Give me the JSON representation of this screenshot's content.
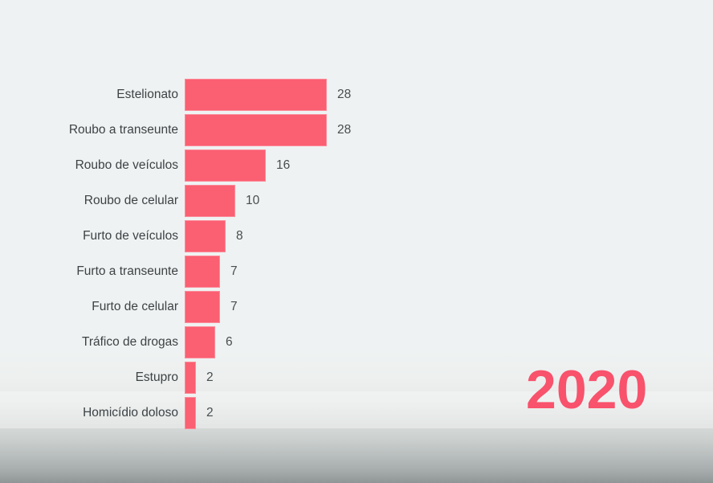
{
  "chart_data": {
    "type": "bar",
    "orientation": "horizontal",
    "title": "",
    "xlabel": "",
    "ylabel": "",
    "categories": [
      "Estelionato",
      "Roubo a transeunte",
      "Roubo de veículos",
      "Roubo de celular",
      "Furto de veículos",
      "Furto a transeunte",
      "Furto de celular",
      "Tráfico de drogas",
      "Estupro",
      "Homicídio doloso"
    ],
    "values": [
      28,
      28,
      16,
      10,
      8,
      7,
      7,
      6,
      2,
      2
    ],
    "xlim": [
      0,
      28
    ],
    "grid": false,
    "legend": false,
    "value_labels_shown": true
  },
  "year_badge": {
    "text": "2020"
  },
  "colors": {
    "bar": "#fb5f72",
    "year": "#f8526c",
    "label_text": "#3d4245",
    "value_text": "#484d4f",
    "background_top": "#eff2f2",
    "background_bottom": "#8f9696"
  }
}
